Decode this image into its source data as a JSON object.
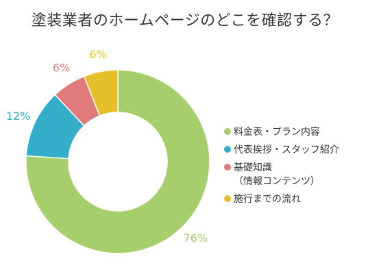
{
  "chart_data": {
    "type": "pie",
    "title": "塗装業者のホームページのどこを確認する？",
    "slices": [
      {
        "label": "料金表・プラン内容",
        "value": 76,
        "display": "76%",
        "color": "#a6ce6a"
      },
      {
        "label": "代表挨拶・スタッフ紹介",
        "value": 12,
        "display": "12%",
        "color": "#34adc9"
      },
      {
        "label": "基礎知識\n（情報コンテンツ）",
        "value": 6,
        "display": "6%",
        "color": "#e07b7b"
      },
      {
        "label": "施行までの流れ",
        "value": 6,
        "display": "6%",
        "color": "#e5c02a"
      }
    ],
    "legend_position": "right"
  }
}
